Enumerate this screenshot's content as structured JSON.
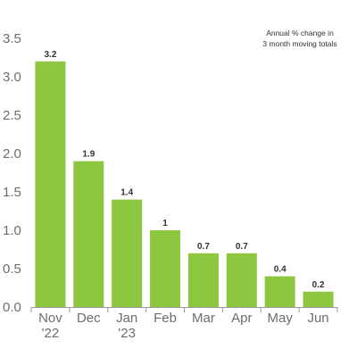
{
  "chart_data": {
    "type": "bar",
    "categories": [
      [
        "Nov",
        "'22"
      ],
      [
        "Dec"
      ],
      [
        "Jan",
        "'23"
      ],
      [
        "Feb"
      ],
      [
        "Mar"
      ],
      [
        "Apr"
      ],
      [
        "May"
      ],
      [
        "Jun"
      ]
    ],
    "values": [
      3.2,
      1.9,
      1.4,
      1.0,
      0.7,
      0.7,
      0.4,
      0.2
    ],
    "data_labels": [
      "3.2",
      "1.9",
      "1.4",
      "1",
      "0.7",
      "0.7",
      "0.4",
      "0.2"
    ],
    "yticks": [
      "0.0",
      "0.5",
      "1.0",
      "1.5",
      "2.0",
      "2.5",
      "3.0",
      "3.5"
    ],
    "ylim": [
      0,
      3.5
    ],
    "annotation": [
      "Annual % change in",
      "3 month moving totals"
    ],
    "title": "",
    "xlabel": "",
    "ylabel": "",
    "grid": false,
    "colors": {
      "bar": "#8dc63f",
      "axis": "#9a9a9a"
    }
  }
}
